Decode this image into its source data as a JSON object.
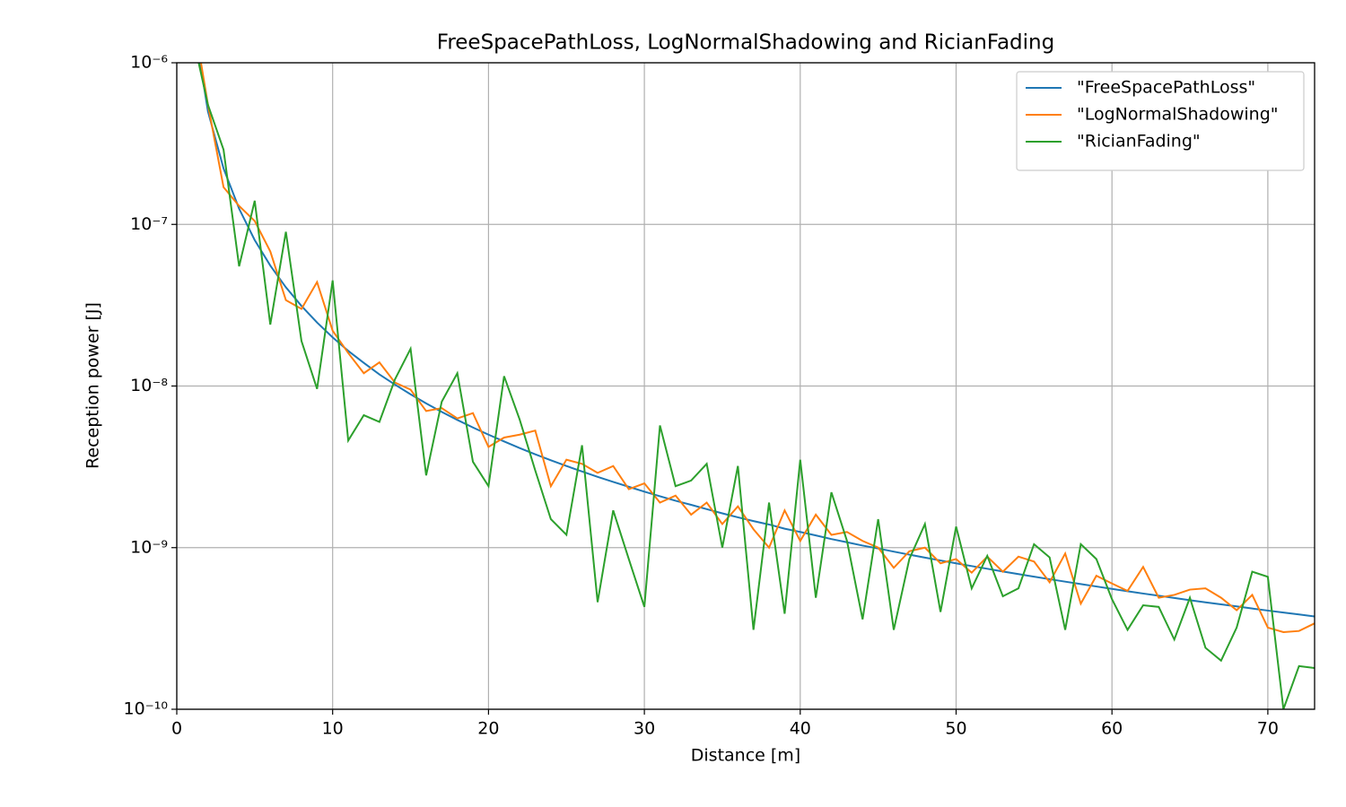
{
  "chart_data": {
    "type": "line",
    "title": "FreeSpacePathLoss, LogNormalShadowing and RicianFading",
    "x_label": "Distance [m]",
    "y_label": "Reception power [J]",
    "log_y": true,
    "grid": true,
    "legend": "upper right",
    "xlim": [
      0,
      73
    ],
    "xticks": [
      0,
      10,
      20,
      30,
      40,
      50,
      60,
      70
    ],
    "ylim": [
      1e-10,
      1e-06
    ],
    "yticks": [
      {
        "value": 1e-10,
        "label": "10⁻¹⁰"
      },
      {
        "value": 1e-09,
        "label": "10⁻⁹"
      },
      {
        "value": 1e-08,
        "label": "10⁻⁸"
      },
      {
        "value": 1e-07,
        "label": "10⁻⁷"
      },
      {
        "value": 1e-06,
        "label": "10⁻⁶"
      }
    ],
    "x": [
      1,
      2,
      3,
      4,
      5,
      6,
      7,
      8,
      9,
      10,
      11,
      12,
      13,
      14,
      15,
      16,
      17,
      18,
      19,
      20,
      21,
      22,
      23,
      24,
      25,
      26,
      27,
      28,
      29,
      30,
      31,
      32,
      33,
      34,
      35,
      36,
      37,
      38,
      39,
      40,
      41,
      42,
      43,
      44,
      45,
      46,
      47,
      48,
      49,
      50,
      51,
      52,
      53,
      54,
      55,
      56,
      57,
      58,
      59,
      60,
      61,
      62,
      63,
      64,
      65,
      66,
      67,
      68,
      69,
      70,
      71,
      72,
      73
    ],
    "series": [
      {
        "name": "\"FreeSpacePathLoss\"",
        "color": "#1f77b4",
        "values": [
          2e-06,
          5e-07,
          2.22e-07,
          1.25e-07,
          8e-08,
          5.56e-08,
          4.08e-08,
          3.13e-08,
          2.47e-08,
          2e-08,
          1.65e-08,
          1.39e-08,
          1.18e-08,
          1.02e-08,
          8.89e-09,
          7.81e-09,
          6.92e-09,
          6.17e-09,
          5.54e-09,
          5e-09,
          4.54e-09,
          4.13e-09,
          3.78e-09,
          3.47e-09,
          3.2e-09,
          2.96e-09,
          2.74e-09,
          2.55e-09,
          2.38e-09,
          2.22e-09,
          2.08e-09,
          1.95e-09,
          1.84e-09,
          1.73e-09,
          1.63e-09,
          1.54e-09,
          1.46e-09,
          1.39e-09,
          1.31e-09,
          1.25e-09,
          1.19e-09,
          1.13e-09,
          1.08e-09,
          1.03e-09,
          9.88e-10,
          9.45e-10,
          9.05e-10,
          8.68e-10,
          8.33e-10,
          8e-10,
          7.69e-10,
          7.4e-10,
          7.12e-10,
          6.86e-10,
          6.61e-10,
          6.38e-10,
          6.16e-10,
          5.95e-10,
          5.75e-10,
          5.56e-10,
          5.37e-10,
          5.2e-10,
          5.04e-10,
          4.88e-10,
          4.73e-10,
          4.59e-10,
          4.46e-10,
          4.33e-10,
          4.2e-10,
          4.08e-10,
          3.97e-10,
          3.86e-10,
          3.75e-10
        ]
      },
      {
        "name": "\"LogNormalShadowing\"",
        "color": "#ff7f0e",
        "values": [
          2.1e-06,
          5.5e-07,
          1.7e-07,
          1.3e-07,
          1.05e-07,
          6.8e-08,
          3.4e-08,
          3e-08,
          4.4e-08,
          2.2e-08,
          1.6e-08,
          1.2e-08,
          1.4e-08,
          1.05e-08,
          9.5e-09,
          7e-09,
          7.3e-09,
          6.3e-09,
          6.8e-09,
          4.2e-09,
          4.8e-09,
          5e-09,
          5.3e-09,
          2.4e-09,
          3.5e-09,
          3.3e-09,
          2.9e-09,
          3.2e-09,
          2.3e-09,
          2.5e-09,
          1.9e-09,
          2.1e-09,
          1.6e-09,
          1.9e-09,
          1.4e-09,
          1.8e-09,
          1.3e-09,
          1e-09,
          1.7e-09,
          1.1e-09,
          1.6e-09,
          1.2e-09,
          1.25e-09,
          1.1e-09,
          1e-09,
          7.5e-10,
          9.5e-10,
          1e-09,
          8e-10,
          8.5e-10,
          7e-10,
          8.8e-10,
          7.1e-10,
          8.8e-10,
          8.2e-10,
          6.1e-10,
          9.2e-10,
          4.5e-10,
          6.7e-10,
          6e-10,
          5.4e-10,
          7.6e-10,
          4.9e-10,
          5.1e-10,
          5.5e-10,
          5.6e-10,
          4.9e-10,
          4.1e-10,
          5.1e-10,
          3.2e-10,
          3e-10,
          3.05e-10,
          3.4e-10
        ]
      },
      {
        "name": "\"RicianFading\"",
        "color": "#2ca02c",
        "values": [
          1.5e-06,
          5.5e-07,
          2.9e-07,
          5.5e-08,
          1.4e-07,
          2.4e-08,
          9e-08,
          1.9e-08,
          9.6e-09,
          4.5e-08,
          4.6e-09,
          6.6e-09,
          6e-09,
          1.1e-08,
          1.7e-08,
          2.8e-09,
          8e-09,
          1.2e-08,
          3.4e-09,
          2.4e-09,
          1.15e-08,
          6.2e-09,
          3e-09,
          1.5e-09,
          1.2e-09,
          4.3e-09,
          4.6e-10,
          1.7e-09,
          8.5e-10,
          4.3e-10,
          5.7e-09,
          2.4e-09,
          2.6e-09,
          3.3e-09,
          1e-09,
          3.2e-09,
          3.1e-10,
          1.9e-09,
          3.9e-10,
          3.5e-09,
          4.9e-10,
          2.2e-09,
          1.1e-09,
          3.6e-10,
          1.5e-09,
          3.1e-10,
          8.5e-10,
          1.4e-09,
          4e-10,
          1.35e-09,
          5.6e-10,
          8.9e-10,
          5e-10,
          5.6e-10,
          1.05e-09,
          8.7e-10,
          3.1e-10,
          1.05e-09,
          8.5e-10,
          4.8e-10,
          3.1e-10,
          4.4e-10,
          4.3e-10,
          2.7e-10,
          4.9e-10,
          2.4e-10,
          2e-10,
          3.2e-10,
          7.1e-10,
          6.6e-10,
          1e-10,
          1.85e-10,
          1.8e-10
        ]
      }
    ]
  }
}
